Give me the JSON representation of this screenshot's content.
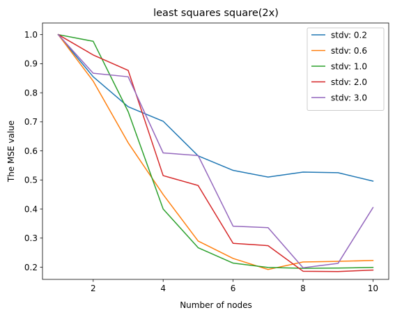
{
  "chart_data": {
    "type": "line",
    "title": "least squares square(2x)",
    "xlabel": "Number of nodes",
    "ylabel": "The MSE value",
    "x": [
      1,
      2,
      3,
      4,
      5,
      6,
      7,
      8,
      9,
      10
    ],
    "xticks": [
      2,
      4,
      6,
      8,
      10
    ],
    "yticks": [
      0.2,
      0.3,
      0.4,
      0.5,
      0.6,
      0.7,
      0.8,
      0.9,
      1.0
    ],
    "xlim": [
      0.55,
      10.45
    ],
    "ylim": [
      0.158,
      1.04
    ],
    "grid": false,
    "legend_position": "top-right",
    "series": [
      {
        "name": "stdv: 0.2",
        "color": "#1f77b4",
        "values": [
          1.0,
          0.855,
          0.752,
          0.702,
          0.583,
          0.533,
          0.51,
          0.527,
          0.525,
          0.496
        ]
      },
      {
        "name": "stdv: 0.6",
        "color": "#ff7f0e",
        "values": [
          1.0,
          0.84,
          0.628,
          0.45,
          0.29,
          0.23,
          0.192,
          0.218,
          0.22,
          0.223
        ]
      },
      {
        "name": "stdv: 1.0",
        "color": "#2ca02c",
        "values": [
          1.0,
          0.977,
          0.735,
          0.4,
          0.267,
          0.214,
          0.199,
          0.196,
          0.197,
          0.199
        ]
      },
      {
        "name": "stdv: 2.0",
        "color": "#d62728",
        "values": [
          1.0,
          0.93,
          0.877,
          0.515,
          0.481,
          0.282,
          0.274,
          0.186,
          0.185,
          0.19
        ]
      },
      {
        "name": "stdv: 3.0",
        "color": "#9467bd",
        "values": [
          1.0,
          0.867,
          0.855,
          0.593,
          0.584,
          0.341,
          0.336,
          0.198,
          0.213,
          0.405
        ]
      }
    ]
  }
}
